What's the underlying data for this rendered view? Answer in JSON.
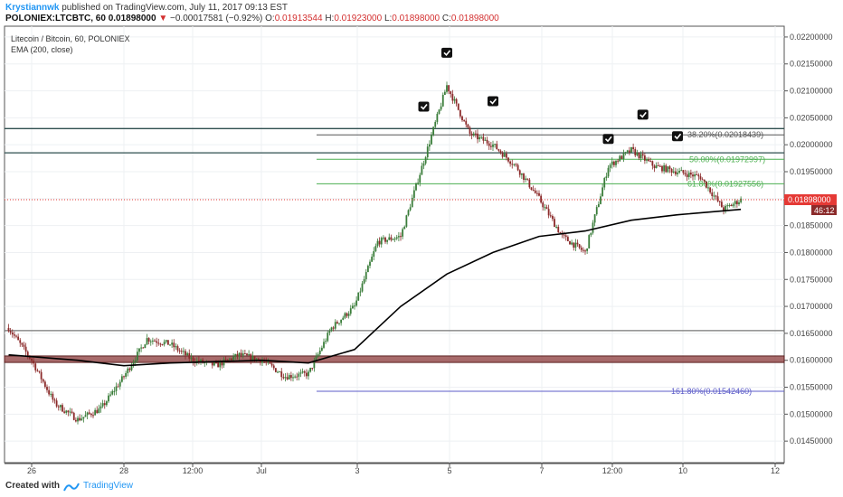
{
  "header": {
    "author": "Krystiannwk",
    "published": "published on TradingView.com, July 11, 2017 09:13 EST",
    "symbol": "POLONIEX:LTCBTC, 60",
    "price": "0.01898000",
    "change": "−0.00017581 (−0.92%)",
    "o_label": "O:",
    "o_value": "0.01913544",
    "h_label": "H:",
    "h_value": "0.01923000",
    "l_label": "L:",
    "l_value": "0.01898000",
    "c_label": "C:",
    "c_value": "0.01898000"
  },
  "legend": {
    "pair": "Litecoin / Bitcoin, 60, POLONIEX",
    "indicator": "EMA (200, close)"
  },
  "footer": {
    "created_with": "Created with",
    "brand": "TradingView"
  },
  "colors": {
    "up": "#3a7d3a",
    "down": "#8b2a2a",
    "ema": "#000000",
    "support_zone": "#8b3a3a",
    "fib_green": "#4caf50",
    "fib_blue": "#5c5cc8",
    "price_tag": "#e53935",
    "time_tag": "#8b2a2a"
  },
  "chart_data": {
    "type": "candlestick",
    "title": "Litecoin / Bitcoin, 60, POLONIEX",
    "y_axis": {
      "range": [
        0.0141,
        0.0222
      ],
      "ticks": [
        "0.02200000",
        "0.02150000",
        "0.02100000",
        "0.02050000",
        "0.02000000",
        "0.01950000",
        "0.01900000",
        "0.01850000",
        "0.01800000",
        "0.01750000",
        "0.01700000",
        "0.01650000",
        "0.01600000",
        "0.01550000",
        "0.01500000",
        "0.01450000"
      ]
    },
    "x_axis": {
      "ticks": [
        "26",
        "28",
        "12:00",
        "Jul",
        "3",
        "5",
        "7",
        "12:00",
        "10",
        "12"
      ]
    },
    "ohlc_anchor_closes": [
      [
        "Jun 25 12:00",
        0.0166
      ],
      [
        "Jun 26 00:00",
        0.016
      ],
      [
        "Jun 26 12:00",
        0.0152
      ],
      [
        "Jun 27 00:00",
        0.0149
      ],
      [
        "Jun 27 12:00",
        0.0151
      ],
      [
        "Jun 28 00:00",
        0.0157
      ],
      [
        "Jun 28 12:00",
        0.0164
      ],
      [
        "Jun 29 00:00",
        0.0163
      ],
      [
        "Jun 29 12:00",
        0.016
      ],
      [
        "Jun 30 00:00",
        0.0159
      ],
      [
        "Jun 30 12:00",
        0.0161
      ],
      [
        "Jul 1 00:00",
        0.016
      ],
      [
        "Jul 1 12:00",
        0.0157
      ],
      [
        "Jul 2 00:00",
        0.01575
      ],
      [
        "Jul 2 12:00",
        0.0166
      ],
      [
        "Jul 3 00:00",
        0.017
      ],
      [
        "Jul 3 12:00",
        0.0182
      ],
      [
        "Jul 4 00:00",
        0.0183
      ],
      [
        "Jul 4 12:00",
        0.0197
      ],
      [
        "Jul 5 00:00",
        0.0211
      ],
      [
        "Jul 5 12:00",
        0.0202
      ],
      [
        "Jul 6 00:00",
        0.02
      ],
      [
        "Jul 6 12:00",
        0.0196
      ],
      [
        "Jul 7 00:00",
        0.019
      ],
      [
        "Jul 7 12:00",
        0.0183
      ],
      [
        "Jul 8 00:00",
        0.018
      ],
      [
        "Jul 8 12:00",
        0.0196
      ],
      [
        "Jul 9 00:00",
        0.0199
      ],
      [
        "Jul 9 12:00",
        0.0196
      ],
      [
        "Jul 10 00:00",
        0.0195
      ],
      [
        "Jul 10 12:00",
        0.0194
      ],
      [
        "Jul 11 00:00",
        0.0188
      ],
      [
        "Jul 11 09:00",
        0.01898
      ]
    ],
    "ema_200_anchors": [
      [
        "Jun 25 12:00",
        0.0161
      ],
      [
        "Jun 27 00:00",
        0.016
      ],
      [
        "Jun 28 00:00",
        0.0159
      ],
      [
        "Jun 29 00:00",
        0.01595
      ],
      [
        "Jul 1 00:00",
        0.016
      ],
      [
        "Jul 2 00:00",
        0.01595
      ],
      [
        "Jul 3 00:00",
        0.0162
      ],
      [
        "Jul 4 00:00",
        0.017
      ],
      [
        "Jul 5 00:00",
        0.0176
      ],
      [
        "Jul 6 00:00",
        0.018
      ],
      [
        "Jul 7 00:00",
        0.0183
      ],
      [
        "Jul 8 00:00",
        0.0184
      ],
      [
        "Jul 9 00:00",
        0.0186
      ],
      [
        "Jul 10 00:00",
        0.0187
      ],
      [
        "Jul 11 09:00",
        0.0188
      ]
    ],
    "horizontal_lines": [
      {
        "value": 0.0203,
        "color": "#2f4f4f",
        "label": ""
      },
      {
        "value": 0.01985,
        "color": "#2f4f4f",
        "label": ""
      },
      {
        "value": 0.01655,
        "color": "#777777",
        "label": ""
      }
    ],
    "support_zone": {
      "from": 0.01596,
      "to": 0.01608
    },
    "fibonacci": [
      {
        "label": "38.20%(0.02018439)",
        "value": 0.02018439,
        "color": "#555555"
      },
      {
        "label": "50.00%(0.01972997)",
        "value": 0.01972997,
        "color": "#4caf50"
      },
      {
        "label": "61.80%(0.01927556)",
        "value": 0.01927556,
        "color": "#4caf50"
      },
      {
        "label": "161.80%(0.01542460)",
        "value": 0.0154246,
        "color": "#5c5cc8"
      }
    ],
    "checkmarks": [
      [
        "Jul 4 12:00",
        0.0207
      ],
      [
        "Jul 5 00:00",
        0.0217
      ],
      [
        "Jul 6 00:00",
        0.0208
      ],
      [
        "Jul 8 12:00",
        0.0201
      ],
      [
        "Jul 9 06:00",
        0.02055
      ],
      [
        "Jul 10 00:00",
        0.02015
      ]
    ],
    "last_price": {
      "label": "0.01898000",
      "value": 0.01898
    },
    "countdown": "46:12",
    "grid": true
  }
}
